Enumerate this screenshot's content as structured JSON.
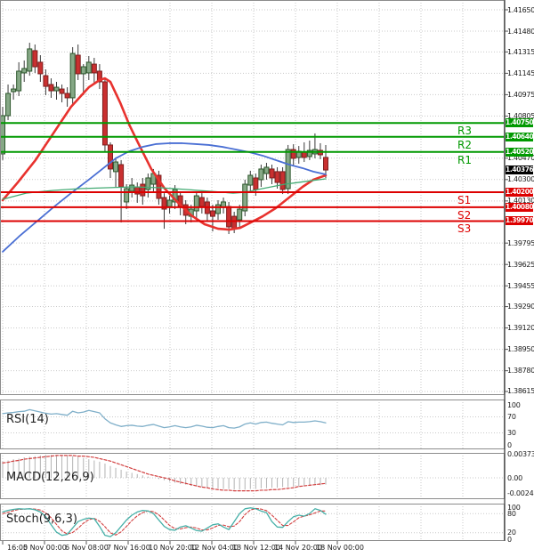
{
  "colors": {
    "background": "#ffffff",
    "grid": "#c9c9c9",
    "panel_border": "#8c8c8c",
    "axis_border": "#4a4a4a",
    "candle_up_fill": "#86a886",
    "candle_up_stroke": "#2d572c",
    "candle_down_fill": "#c93030",
    "candle_down_stroke": "#7e1f1f",
    "wick": "#3a3a3a",
    "resistance": "#009900",
    "support": "#dd0000",
    "current_box": "#000000",
    "ma_fast": "#e8322e",
    "ma_mid": "#4a6fd4",
    "ma_slow": "#44ab74",
    "rsi_line": "#7fafc9",
    "macd_hist": "#b3b3b3",
    "macd_signal": "#d23f3f",
    "stoch_k": "#46b0a8",
    "stoch_d": "#d23f3f"
  },
  "price_axis": {
    "ticks": [
      "1.41650",
      "1.41480",
      "1.41315",
      "1.41145",
      "1.40975",
      "1.40805",
      "1.40470",
      "1.40300",
      "1.40130",
      "1.39795",
      "1.39625",
      "1.39455",
      "1.39290",
      "1.39120",
      "1.38950",
      "1.38780",
      "1.38615"
    ]
  },
  "time_axis": {
    "labels": [
      "16:00",
      "5 Nov 00:00",
      "6 Nov 08:00",
      "7 Nov 16:00",
      "10 Nov 20:00",
      "12 Nov 04:00",
      "13 Nov 12:00",
      "14 Nov 20:00",
      "18 Nov 00:00"
    ]
  },
  "levels": {
    "resistance": [
      {
        "name": "R3",
        "label": "1.40750",
        "price": 1.4075
      },
      {
        "name": "R2",
        "label": "1.40640",
        "price": 1.4064
      },
      {
        "name": "R1",
        "label": "1.40520",
        "price": 1.4052
      }
    ],
    "support": [
      {
        "name": "S1",
        "label": "1.40200",
        "price": 1.402
      },
      {
        "name": "S2",
        "label": "1.40080",
        "price": 1.4008
      },
      {
        "name": "S3",
        "label": "1.39970",
        "price": 1.3997
      }
    ],
    "current": {
      "label": "1.40376",
      "price": 1.40376
    }
  },
  "indicators": {
    "rsi": {
      "name": "RSI(14)",
      "scale": [
        {
          "label": "100",
          "value": 100
        },
        {
          "label": "70",
          "value": 70
        },
        {
          "label": "30",
          "value": 30
        },
        {
          "label": "0",
          "value": 0
        }
      ],
      "gridlines": [
        70,
        30
      ],
      "values": [
        78,
        80,
        81,
        83,
        84,
        88,
        85,
        82,
        79,
        77,
        78,
        76,
        74,
        84,
        80,
        82,
        86,
        83,
        80,
        65,
        55,
        50,
        46,
        48,
        49,
        47,
        46,
        49,
        51,
        47,
        43,
        45,
        48,
        45,
        43,
        45,
        49,
        47,
        44,
        43,
        46,
        48,
        43,
        42,
        45,
        52,
        55,
        52,
        56,
        57,
        54,
        52,
        50,
        58,
        56,
        57,
        57,
        58,
        60,
        58,
        55
      ]
    },
    "macd": {
      "name": "MACD(12,26,9)",
      "scale": [
        {
          "label": "0.003731",
          "value": 0.003731
        },
        {
          "label": "0.00",
          "value": 0
        },
        {
          "label": "-0.002473",
          "value": -0.002473
        }
      ],
      "gridlines": [
        0
      ],
      "histogram": [
        0.0026,
        0.0028,
        0.003,
        0.0031,
        0.0033,
        0.0034,
        0.0035,
        0.0036,
        0.0037,
        0.0037,
        0.0037,
        0.0036,
        0.0036,
        0.0035,
        0.0034,
        0.0032,
        0.003,
        0.0028,
        0.0026,
        0.0023,
        0.0019,
        0.0016,
        0.0013,
        0.001,
        0.0008,
        0.0006,
        0.0004,
        0.0002,
        0.0,
        -0.0002,
        -0.0004,
        -0.0006,
        -0.0008,
        -0.001,
        -0.0011,
        -0.0013,
        -0.0014,
        -0.0015,
        -0.0016,
        -0.0017,
        -0.0017,
        -0.0018,
        -0.0018,
        -0.0019,
        -0.0019,
        -0.0019,
        -0.0018,
        -0.0018,
        -0.0017,
        -0.0017,
        -0.0016,
        -0.0016,
        -0.0015,
        -0.0015,
        -0.0014,
        -0.0014,
        -0.0013,
        -0.0013,
        -0.0012,
        -0.0012,
        -0.0011
      ],
      "signal": [
        0.0024,
        0.0025,
        0.0027,
        0.0028,
        0.003,
        0.0031,
        0.0032,
        0.0033,
        0.0034,
        0.0035,
        0.0036,
        0.0036,
        0.0036,
        0.0036,
        0.0035,
        0.0035,
        0.0034,
        0.0033,
        0.0031,
        0.0029,
        0.0027,
        0.0024,
        0.0021,
        0.0018,
        0.0015,
        0.0012,
        0.0009,
        0.0006,
        0.0004,
        0.0002,
        0.0,
        -0.0002,
        -0.0005,
        -0.0007,
        -0.0009,
        -0.0011,
        -0.0013,
        -0.0015,
        -0.0016,
        -0.0018,
        -0.0019,
        -0.002,
        -0.002,
        -0.0021,
        -0.0021,
        -0.0021,
        -0.0021,
        -0.0021,
        -0.002,
        -0.002,
        -0.0019,
        -0.0019,
        -0.0018,
        -0.0017,
        -0.0016,
        -0.0014,
        -0.0013,
        -0.0012,
        -0.0011,
        -0.001,
        -0.0009
      ]
    },
    "stoch": {
      "name": "Stoch(9,6,3)",
      "scale": [
        {
          "label": "100",
          "value": 100
        },
        {
          "label": "80",
          "value": 80
        },
        {
          "label": "20",
          "value": 20
        },
        {
          "label": "0",
          "value": 0
        }
      ],
      "gridlines": [
        80,
        20
      ],
      "k": [
        85,
        90,
        93,
        95,
        94,
        95,
        92,
        85,
        70,
        45,
        22,
        12,
        15,
        35,
        55,
        62,
        66,
        64,
        40,
        12,
        8,
        20,
        40,
        60,
        75,
        85,
        90,
        88,
        80,
        60,
        40,
        30,
        28,
        38,
        42,
        35,
        27,
        25,
        35,
        45,
        48,
        38,
        30,
        55,
        80,
        95,
        98,
        95,
        88,
        83,
        55,
        38,
        37,
        55,
        70,
        75,
        72,
        80,
        95,
        90,
        78
      ],
      "d": [
        80,
        84,
        89,
        93,
        94,
        95,
        94,
        91,
        82,
        67,
        46,
        26,
        16,
        21,
        34,
        50,
        61,
        65,
        56,
        39,
        20,
        13,
        23,
        40,
        58,
        73,
        83,
        88,
        86,
        76,
        60,
        43,
        33,
        32,
        36,
        38,
        35,
        29,
        29,
        35,
        43,
        44,
        39,
        41,
        55,
        77,
        91,
        96,
        94,
        89,
        75,
        59,
        43,
        43,
        54,
        67,
        72,
        76,
        82,
        88,
        88
      ]
    }
  },
  "chart_data": {
    "type": "candlestick",
    "timeframe": "4h",
    "price_axis_range": [
      1.38615,
      1.41728
    ],
    "x_labels": [
      "16:00",
      "5 Nov 00:00",
      "6 Nov 08:00",
      "7 Nov 16:00",
      "10 Nov 20:00",
      "12 Nov 04:00",
      "13 Nov 12:00",
      "14 Nov 20:00",
      "18 Nov 00:00"
    ],
    "current_price": 1.40376,
    "candles_ohlc": [
      [
        1.40504,
        1.40879,
        1.40455,
        1.40808
      ],
      [
        1.40808,
        1.41056,
        1.40773,
        1.40985
      ],
      [
        1.40999,
        1.41056,
        1.40935,
        1.4102
      ],
      [
        1.41006,
        1.41233,
        1.40964,
        1.41162
      ],
      [
        1.41148,
        1.41247,
        1.41077,
        1.41183
      ],
      [
        1.41162,
        1.41388,
        1.41126,
        1.41339
      ],
      [
        1.41325,
        1.41374,
        1.41148,
        1.41197
      ],
      [
        1.41233,
        1.41289,
        1.41077,
        1.41141
      ],
      [
        1.41126,
        1.41176,
        1.40971,
        1.41041
      ],
      [
        1.41056,
        1.41105,
        1.4095,
        1.41006
      ],
      [
        1.41006,
        1.41077,
        1.40935,
        1.41034
      ],
      [
        1.4102,
        1.41056,
        1.40914,
        1.40985
      ],
      [
        1.40985,
        1.41034,
        1.40879,
        1.4095
      ],
      [
        1.4095,
        1.41353,
        1.40893,
        1.41303
      ],
      [
        1.41289,
        1.41374,
        1.41091,
        1.41141
      ],
      [
        1.41141,
        1.41218,
        1.40971,
        1.41197
      ],
      [
        1.41148,
        1.41282,
        1.41091,
        1.41233
      ],
      [
        1.41218,
        1.41268,
        1.41056,
        1.41148
      ],
      [
        1.41162,
        1.41218,
        1.4102,
        1.41077
      ],
      [
        1.41077,
        1.41105,
        1.40525,
        1.40575
      ],
      [
        1.40575,
        1.40596,
        1.40313,
        1.40384
      ],
      [
        1.40363,
        1.40476,
        1.40242,
        1.4044
      ],
      [
        1.40419,
        1.40455,
        1.39959,
        1.40242
      ],
      [
        1.40122,
        1.40263,
        1.40065,
        1.40228
      ],
      [
        1.40207,
        1.40313,
        1.40157,
        1.40256
      ],
      [
        1.40242,
        1.40277,
        1.40115,
        1.40185
      ],
      [
        1.40263,
        1.40313,
        1.401,
        1.40171
      ],
      [
        1.40221,
        1.40348,
        1.40157,
        1.40313
      ],
      [
        1.40263,
        1.40384,
        1.40207,
        1.40348
      ],
      [
        1.40334,
        1.4037,
        1.401,
        1.4015
      ],
      [
        1.40157,
        1.40192,
        1.39909,
        1.40065
      ],
      [
        1.40086,
        1.40171,
        1.4003,
        1.40136
      ],
      [
        1.40122,
        1.40256,
        1.40065,
        1.40221
      ],
      [
        1.40171,
        1.40207,
        1.40016,
        1.40086
      ],
      [
        1.401,
        1.40136,
        1.39945,
        1.40016
      ],
      [
        1.40008,
        1.401,
        1.39959,
        1.40065
      ],
      [
        1.40051,
        1.40207,
        1.39994,
        1.40171
      ],
      [
        1.40157,
        1.40192,
        1.4003,
        1.40086
      ],
      [
        1.40122,
        1.40157,
        1.39973,
        1.4003
      ],
      [
        1.40051,
        1.401,
        1.39888,
        1.40008
      ],
      [
        1.4003,
        1.40136,
        1.3998,
        1.401
      ],
      [
        1.40079,
        1.40157,
        1.4003,
        1.40122
      ],
      [
        1.40086,
        1.40122,
        1.39867,
        1.39924
      ],
      [
        1.40008,
        1.40044,
        1.39874,
        1.39909
      ],
      [
        1.3998,
        1.401,
        1.39924,
        1.40065
      ],
      [
        1.40051,
        1.40299,
        1.40008,
        1.40263
      ],
      [
        1.40256,
        1.4037,
        1.40207,
        1.40334
      ],
      [
        1.40313,
        1.40348,
        1.40171,
        1.40221
      ],
      [
        1.40299,
        1.40419,
        1.40242,
        1.40384
      ],
      [
        1.40348,
        1.40433,
        1.40299,
        1.40398
      ],
      [
        1.40384,
        1.40419,
        1.40263,
        1.40313
      ],
      [
        1.40363,
        1.40398,
        1.40228,
        1.40277
      ],
      [
        1.40363,
        1.40398,
        1.40185,
        1.40221
      ],
      [
        1.40228,
        1.40575,
        1.40185,
        1.40539
      ],
      [
        1.40539,
        1.40581,
        1.40405,
        1.40469
      ],
      [
        1.40476,
        1.40567,
        1.40426,
        1.40525
      ],
      [
        1.40518,
        1.40596,
        1.4044,
        1.40476
      ],
      [
        1.40483,
        1.4061,
        1.40455,
        1.40532
      ],
      [
        1.40504,
        1.40667,
        1.40469,
        1.40539
      ],
      [
        1.40532,
        1.40589,
        1.40462,
        1.40497
      ],
      [
        1.40476,
        1.40575,
        1.40313,
        1.40376
      ]
    ],
    "moving_averages": [
      {
        "name": "ma-fast-red",
        "color": "#e8322e",
        "width": 2.6,
        "points": [
          [
            0,
            1.40136
          ],
          [
            2.8,
            1.40277
          ],
          [
            6.1,
            1.40455
          ],
          [
            9.4,
            1.40667
          ],
          [
            12.7,
            1.40879
          ],
          [
            16,
            1.41034
          ],
          [
            18,
            1.41091
          ],
          [
            19,
            1.41105
          ],
          [
            20,
            1.41077
          ],
          [
            21.8,
            1.40914
          ],
          [
            23.5,
            1.40737
          ],
          [
            25.1,
            1.40596
          ],
          [
            27.6,
            1.40384
          ],
          [
            30.1,
            1.40228
          ],
          [
            32.6,
            1.40115
          ],
          [
            35,
            1.40016
          ],
          [
            37.5,
            1.39945
          ],
          [
            40,
            1.39909
          ],
          [
            42.1,
            1.39902
          ],
          [
            44.1,
            1.39916
          ],
          [
            46.1,
            1.39959
          ],
          [
            48.3,
            1.40008
          ],
          [
            50.7,
            1.40072
          ],
          [
            53.2,
            1.40157
          ],
          [
            55.7,
            1.40242
          ],
          [
            57.7,
            1.40299
          ],
          [
            60,
            1.40334
          ]
        ]
      },
      {
        "name": "ma-mid-blue",
        "color": "#4a6fd4",
        "width": 1.8,
        "points": [
          [
            0,
            1.39726
          ],
          [
            3,
            1.39846
          ],
          [
            6.1,
            1.39959
          ],
          [
            9.4,
            1.40079
          ],
          [
            12.7,
            1.40192
          ],
          [
            16,
            1.40299
          ],
          [
            18.5,
            1.40384
          ],
          [
            21,
            1.40469
          ],
          [
            23.5,
            1.40525
          ],
          [
            26,
            1.4056
          ],
          [
            28.4,
            1.40582
          ],
          [
            30.9,
            1.40589
          ],
          [
            33.4,
            1.40589
          ],
          [
            35.9,
            1.40582
          ],
          [
            38.3,
            1.40575
          ],
          [
            40.8,
            1.4056
          ],
          [
            43.3,
            1.40539
          ],
          [
            45.8,
            1.40518
          ],
          [
            48.3,
            1.4049
          ],
          [
            50.7,
            1.40455
          ],
          [
            53.2,
            1.40419
          ],
          [
            55.7,
            1.40391
          ],
          [
            57.7,
            1.40363
          ],
          [
            60,
            1.40341
          ]
        ]
      },
      {
        "name": "ma-slow-green",
        "color": "#44ab74",
        "width": 1.3,
        "points": [
          [
            0,
            1.40143
          ],
          [
            4.5,
            1.40193
          ],
          [
            9.4,
            1.40214
          ],
          [
            14.4,
            1.40228
          ],
          [
            19.3,
            1.40235
          ],
          [
            24.3,
            1.40242
          ],
          [
            29.3,
            1.40235
          ],
          [
            34.2,
            1.40221
          ],
          [
            38.3,
            1.40207
          ],
          [
            40.8,
            1.40199
          ],
          [
            42.8,
            1.40192
          ],
          [
            45,
            1.40199
          ],
          [
            47.4,
            1.40221
          ],
          [
            49.9,
            1.40242
          ],
          [
            52.4,
            1.40263
          ],
          [
            54.9,
            1.40277
          ],
          [
            57.4,
            1.40292
          ],
          [
            60,
            1.40306
          ]
        ]
      }
    ],
    "horizontal_levels": {
      "resistance": [
        1.4075,
        1.4064,
        1.4052
      ],
      "support": [
        1.402,
        1.4008,
        1.3997
      ]
    }
  }
}
